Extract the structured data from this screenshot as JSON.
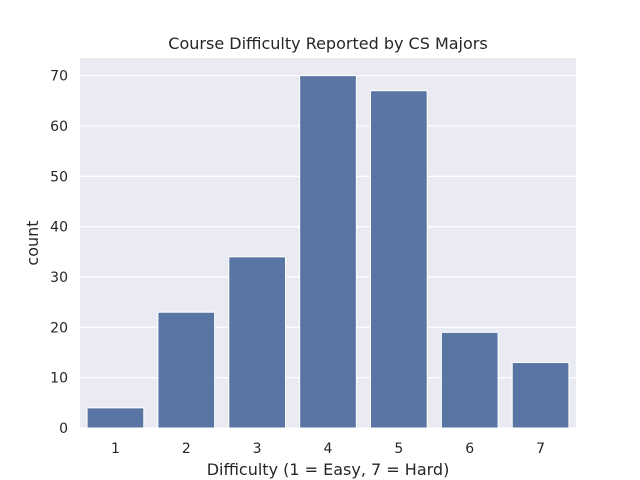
{
  "chart_data": {
    "type": "bar",
    "title": "Course Difficulty Reported by CS Majors",
    "xlabel": "Difficulty (1 = Easy, 7 = Hard)",
    "ylabel": "count",
    "categories": [
      "1",
      "2",
      "3",
      "4",
      "5",
      "6",
      "7"
    ],
    "values": [
      4,
      23,
      34,
      70,
      67,
      19,
      13
    ],
    "ylim": [
      0,
      73.5
    ],
    "yticks": [
      0,
      10,
      20,
      30,
      40,
      50,
      60,
      70
    ],
    "grid": true,
    "legend": "none",
    "colors": {
      "bar": "#5875a4",
      "background": "#eaeaf2",
      "grid": "#ffffff",
      "text": "#262626"
    }
  }
}
